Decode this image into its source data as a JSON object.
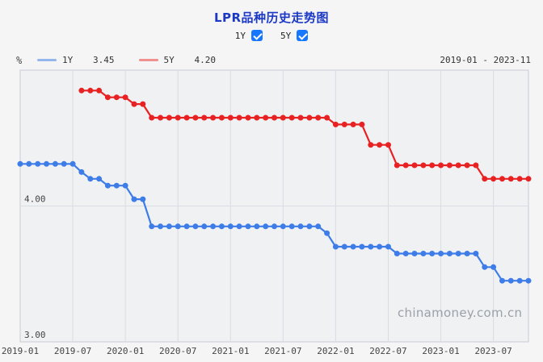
{
  "header": {
    "title": "LPR品种历史走势图"
  },
  "controls": {
    "toggles": [
      {
        "label": "1Y",
        "checked": true
      },
      {
        "label": "5Y",
        "checked": true
      }
    ]
  },
  "legend": {
    "unit": "%",
    "items": [
      {
        "label": "1Y",
        "value": "3.45",
        "swatch_color": "#93b6ec"
      },
      {
        "label": "5Y",
        "value": "4.20",
        "swatch_color": "#f0908f"
      }
    ],
    "date_range": "2019-01 - 2023-11"
  },
  "watermark": "chinamoney.com.cn",
  "colors": {
    "title": "#1c39c6",
    "checkbox": "#1677ff",
    "series_1y": "#3e7de8",
    "series_5y": "#e82222",
    "plot_bg": "#f0f1f3",
    "plot_border": "#c7ccd5",
    "gridline": "#d9dce3"
  },
  "chart_data": {
    "type": "line",
    "title": "LPR品种历史走势图",
    "ylabel": "%",
    "ylim": [
      3.0,
      5.0
    ],
    "y_ticks": [
      3.0,
      4.0,
      5.0
    ],
    "grid": true,
    "legend_position": "top",
    "x": [
      "2019-01",
      "2019-02",
      "2019-03",
      "2019-04",
      "2019-05",
      "2019-06",
      "2019-07",
      "2019-08",
      "2019-09",
      "2019-10",
      "2019-11",
      "2019-12",
      "2020-01",
      "2020-02",
      "2020-03",
      "2020-04",
      "2020-05",
      "2020-06",
      "2020-07",
      "2020-08",
      "2020-09",
      "2020-10",
      "2020-11",
      "2020-12",
      "2021-01",
      "2021-02",
      "2021-03",
      "2021-04",
      "2021-05",
      "2021-06",
      "2021-07",
      "2021-08",
      "2021-09",
      "2021-10",
      "2021-11",
      "2021-12",
      "2022-01",
      "2022-02",
      "2022-03",
      "2022-04",
      "2022-05",
      "2022-06",
      "2022-07",
      "2022-08",
      "2022-09",
      "2022-10",
      "2022-11",
      "2022-12",
      "2023-01",
      "2023-02",
      "2023-03",
      "2023-04",
      "2023-05",
      "2023-06",
      "2023-07",
      "2023-08",
      "2023-09",
      "2023-10",
      "2023-11"
    ],
    "x_ticks": [
      "2019-01",
      "2019-07",
      "2020-01",
      "2020-07",
      "2021-01",
      "2021-07",
      "2022-01",
      "2022-07",
      "2023-01",
      "2023-07"
    ],
    "series": [
      {
        "name": "1Y",
        "color": "#3e7de8",
        "latest": 3.45,
        "values": [
          4.31,
          4.31,
          4.31,
          4.31,
          4.31,
          4.31,
          4.31,
          4.25,
          4.2,
          4.2,
          4.15,
          4.15,
          4.15,
          4.05,
          4.05,
          3.85,
          3.85,
          3.85,
          3.85,
          3.85,
          3.85,
          3.85,
          3.85,
          3.85,
          3.85,
          3.85,
          3.85,
          3.85,
          3.85,
          3.85,
          3.85,
          3.85,
          3.85,
          3.85,
          3.85,
          3.8,
          3.7,
          3.7,
          3.7,
          3.7,
          3.7,
          3.7,
          3.7,
          3.65,
          3.65,
          3.65,
          3.65,
          3.65,
          3.65,
          3.65,
          3.65,
          3.65,
          3.65,
          3.55,
          3.55,
          3.45,
          3.45,
          3.45,
          3.45
        ]
      },
      {
        "name": "5Y",
        "color": "#e82222",
        "latest": 4.2,
        "values": [
          null,
          null,
          null,
          null,
          null,
          null,
          null,
          4.85,
          4.85,
          4.85,
          4.8,
          4.8,
          4.8,
          4.75,
          4.75,
          4.65,
          4.65,
          4.65,
          4.65,
          4.65,
          4.65,
          4.65,
          4.65,
          4.65,
          4.65,
          4.65,
          4.65,
          4.65,
          4.65,
          4.65,
          4.65,
          4.65,
          4.65,
          4.65,
          4.65,
          4.65,
          4.6,
          4.6,
          4.6,
          4.6,
          4.45,
          4.45,
          4.45,
          4.3,
          4.3,
          4.3,
          4.3,
          4.3,
          4.3,
          4.3,
          4.3,
          4.3,
          4.3,
          4.2,
          4.2,
          4.2,
          4.2,
          4.2,
          4.2
        ]
      }
    ]
  }
}
